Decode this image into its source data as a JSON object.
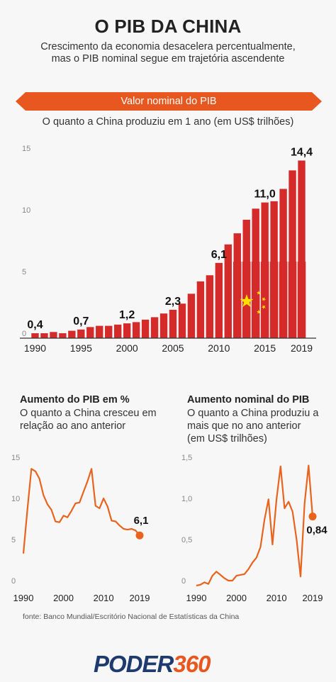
{
  "header": {
    "title": "O PIB DA CHINA",
    "subtitle_line1": "Crescimento da economia desacelera percentualmente,",
    "subtitle_line2": "mas o PIB nominal segue em trajetória ascendente"
  },
  "main_chart": {
    "banner": "Valor nominal do PIB",
    "subtitle": "O quanto a China produziu em 1 ano (em US$ trilhões)"
  },
  "growth_chart": {
    "title": "Aumento do PIB em %",
    "subtitle_line1": "O quanto a China cresceu em",
    "subtitle_line2": "relação ao ano anterior"
  },
  "increase_chart": {
    "title": "Aumento nominal do PIB",
    "subtitle_line1": "O quanto a China produziu a",
    "subtitle_line2": "mais que no ano anterior",
    "subtitle_line3": "(em US$ trilhões)"
  },
  "footer": {
    "source": "fonte: Banco Mundial/Escritório Nacional de Estatísticas da China",
    "logo_part1": "PODER",
    "logo_part2": "360"
  },
  "colors": {
    "bar": "#d42a2a",
    "accent": "#e8571f",
    "line": "#e8641e",
    "star": "#ffde00",
    "logo_blue": "#1e3a6e"
  },
  "chart_data": [
    {
      "type": "bar",
      "title": "Valor nominal do PIB",
      "ylim": [
        0,
        15
      ],
      "yticks": [
        0,
        5,
        10,
        15
      ],
      "xticks": [
        1990,
        1995,
        2000,
        2005,
        2010,
        2015,
        2019
      ],
      "x": [
        1990,
        1991,
        1992,
        1993,
        1994,
        1995,
        1996,
        1997,
        1998,
        1999,
        2000,
        2001,
        2002,
        2003,
        2004,
        2005,
        2006,
        2007,
        2008,
        2009,
        2010,
        2011,
        2012,
        2013,
        2014,
        2015,
        2016,
        2017,
        2018,
        2019
      ],
      "values": [
        0.4,
        0.4,
        0.5,
        0.4,
        0.6,
        0.7,
        0.9,
        1.0,
        1.0,
        1.1,
        1.2,
        1.3,
        1.5,
        1.7,
        2.0,
        2.3,
        2.8,
        3.6,
        4.6,
        5.1,
        6.1,
        7.6,
        8.5,
        9.6,
        10.5,
        11.0,
        11.1,
        12.1,
        13.6,
        14.4
      ],
      "data_labels": [
        {
          "x": 1990,
          "text": "0,4"
        },
        {
          "x": 1995,
          "text": "0,7"
        },
        {
          "x": 2000,
          "text": "1,2"
        },
        {
          "x": 2005,
          "text": "2,3"
        },
        {
          "x": 2010,
          "text": "6,1"
        },
        {
          "x": 2015,
          "text": "11,0"
        },
        {
          "x": 2019,
          "text": "14,4"
        }
      ]
    },
    {
      "type": "line",
      "title": "Aumento do PIB em %",
      "ylim": [
        0,
        15
      ],
      "yticks": [
        0,
        5,
        10,
        15
      ],
      "xticks": [
        1990,
        2000,
        2010,
        2019
      ],
      "x": [
        1990,
        1991,
        1992,
        1993,
        1994,
        1995,
        1996,
        1997,
        1998,
        1999,
        2000,
        2001,
        2002,
        2003,
        2004,
        2005,
        2006,
        2007,
        2008,
        2009,
        2010,
        2011,
        2012,
        2013,
        2014,
        2015,
        2016,
        2017,
        2018,
        2019
      ],
      "values": [
        3.9,
        9.3,
        14.2,
        13.9,
        13.0,
        11.0,
        9.9,
        9.2,
        7.8,
        7.7,
        8.5,
        8.3,
        9.1,
        10.0,
        10.1,
        11.4,
        12.7,
        14.2,
        9.7,
        9.4,
        10.6,
        9.6,
        7.9,
        7.8,
        7.3,
        6.9,
        6.8,
        6.9,
        6.7,
        6.1
      ],
      "end_label": "6,1"
    },
    {
      "type": "line",
      "title": "Aumento nominal do PIB",
      "ylim": [
        0,
        1.5
      ],
      "yticks": [
        0,
        0.5,
        1.0,
        1.5
      ],
      "ytick_labels": [
        "0",
        "0,5",
        "1,0",
        "1,5"
      ],
      "xticks": [
        1990,
        2000,
        2010,
        2019
      ],
      "x": [
        1990,
        1991,
        1992,
        1993,
        1994,
        1995,
        1996,
        1997,
        1998,
        1999,
        2000,
        2001,
        2002,
        2003,
        2004,
        2005,
        2006,
        2007,
        2008,
        2009,
        2010,
        2011,
        2012,
        2013,
        2014,
        2015,
        2016,
        2017,
        2018,
        2019
      ],
      "values": [
        0.0,
        0.01,
        0.04,
        0.02,
        0.12,
        0.17,
        0.13,
        0.09,
        0.06,
        0.06,
        0.12,
        0.13,
        0.14,
        0.2,
        0.28,
        0.34,
        0.47,
        0.8,
        1.05,
        0.5,
        1.05,
        1.45,
        0.94,
        1.02,
        0.9,
        0.56,
        0.11,
        1.0,
        1.46,
        0.84
      ],
      "end_label": "0,84"
    }
  ]
}
